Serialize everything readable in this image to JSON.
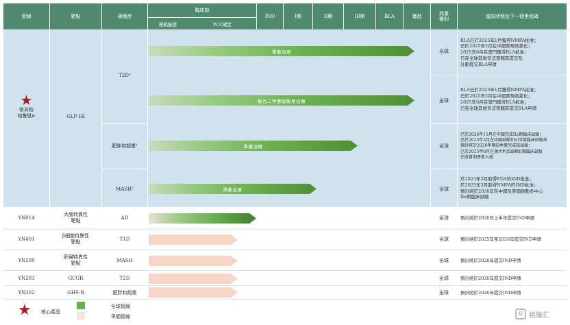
{
  "header": {
    "pipeline": "管線",
    "target": "靶點",
    "indication": "適應症",
    "preclinical": "臨床前",
    "target_validation": "靶點驗證",
    "pcc": "PCC確定",
    "ind": "IND",
    "phase1": "I期",
    "phase2": "II期",
    "phase3": "III期",
    "bla": "BLA",
    "approved": "獲批",
    "rights_line1": "商業",
    "rights_line2": "權利",
    "status": "當前狀態及下一個里程碑"
  },
  "core_product": {
    "name_line1": "依苏帕",
    "name_line2": "格鲁肽α",
    "target": "GLP-1R",
    "indication_t2d": "T2D²",
    "indication_obesity": "肥胖和超重¹",
    "indication_mash": "MASH²",
    "rows": [
      {
        "bar_label": "單藥治療",
        "progress": 1.0,
        "rights": "全球",
        "notes": [
          "BLA已於2025年1月獲得NMPA批准；",
          "已於2025年2月在中國實現商業化；",
          "2025年6月在澳門獲得BLA批准；",
          "已在全球其他司法管轄區提交及",
          "計劃提交BLA申請"
        ]
      },
      {
        "bar_label": "聯合二甲雙胍聯用治療",
        "progress": 1.0,
        "rights": "全球",
        "notes": [
          "BLA已於2025年1月獲得NMPA批准；",
          "已於2025年2月在中國實現商業化；",
          "2025年6月在澳門獲得BLA批准；",
          "已在全球其他司法管轄區提交BLA申請"
        ]
      },
      {
        "bar_label": "單藥治療",
        "progress": 0.75,
        "rights": "全球",
        "notes": [
          "已於2024年11月在中國完成IIa期臨床試驗；",
          "已於2025年3月在中國啟動IIb/III期臨床試驗並",
          "預計將於2026年第四季度完成該試驗；",
          "已於2025年6月在澳大利亞啟動II期臨床試驗",
          "完成首例患者入組"
        ]
      },
      {
        "bar_label": "單藥治療",
        "progress": 0.63,
        "rights": "全球",
        "notes": [
          "於2023年3月取得FDA的IND批准；",
          "於2025年3月取得NMPA的IND批准；",
          "預計將於2026年在中國及美國啟動多中心",
          "IIa期臨床試驗"
        ]
      }
    ]
  },
  "pipeline_rows": [
    {
      "name": "YN014",
      "target": "大腦特異性\n靶點",
      "indication": "AD",
      "bar_type": "global",
      "progress": 0.4,
      "rights": "全球",
      "note": "預計將於2026年上半年提交IND申請"
    },
    {
      "name": "YN401",
      "target": "β細胞特異性\n靶點",
      "indication": "T1D",
      "bar_type": "early",
      "progress": 0.34,
      "rights": "全球",
      "note": "預計將於2025年至2026年提交IND申請"
    },
    {
      "name": "YN209",
      "target": "肝臟特異性\n靶點",
      "indication": "MASH",
      "bar_type": "early",
      "progress": 0.34,
      "rights": "全球",
      "note": "預計將於2026年提交IND申請"
    },
    {
      "name": "YN203",
      "target": "GCGR",
      "indication": "T2D",
      "bar_type": "early",
      "progress": 0.34,
      "rights": "全球",
      "note": "預計將於2026年提交IND申請"
    },
    {
      "name": "YN202",
      "target": "GHS-R",
      "indication": "肥胖和超重",
      "bar_type": "early",
      "progress": 0.34,
      "rights": "全球",
      "note": "預計將於2026年提交IND申請"
    }
  ],
  "legend": {
    "core": "核心產品",
    "global": "全球管線",
    "early": "早期管線"
  },
  "colors": {
    "header": "#4f8a70",
    "core_bg": "#cfe2ed",
    "star": "#a3202b",
    "green_bar": "#6aaf4f",
    "pink_bar": "#f6d6c4"
  },
  "watermark": "格隆汇"
}
